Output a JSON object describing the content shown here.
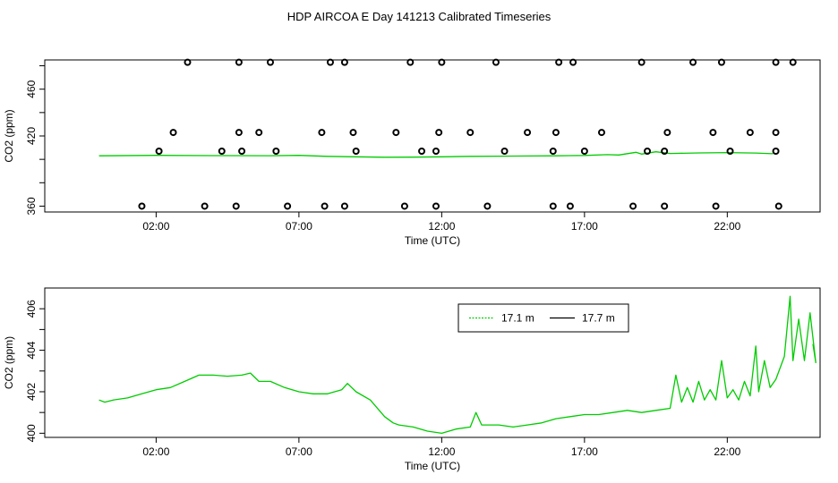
{
  "title": "HDP AIRCOA E  Day 141213  Calibrated Timeseries",
  "colors": {
    "series_a": "#00cc00",
    "series_b": "#000000",
    "frame": "#000000"
  },
  "chart_data": [
    {
      "type": "scatter",
      "xlabel": "Time (UTC)",
      "ylabel": "CO2 (ppm)",
      "x_unit": "hours UTC",
      "xlim": [
        -1.9,
        25.25
      ],
      "ylim": [
        355,
        485
      ],
      "x_ticks": [
        {
          "value": 2,
          "label": "02:00"
        },
        {
          "value": 7,
          "label": "07:00"
        },
        {
          "value": 12,
          "label": "12:00"
        },
        {
          "value": 17,
          "label": "17:00"
        },
        {
          "value": 22,
          "label": "22:00"
        }
      ],
      "y_ticks": [
        {
          "value": 360,
          "label": "360"
        },
        {
          "value": 380,
          "label": ""
        },
        {
          "value": 400,
          "label": ""
        },
        {
          "value": 420,
          "label": "420"
        },
        {
          "value": 440,
          "label": ""
        },
        {
          "value": 460,
          "label": "460"
        },
        {
          "value": 480,
          "label": ""
        }
      ],
      "series": [
        {
          "style": "line",
          "color": "#00cc00",
          "points": [
            [
              0,
              403
            ],
            [
              2,
              403.4
            ],
            [
              4,
              403.2
            ],
            [
              6,
              403.1
            ],
            [
              7,
              403.4
            ],
            [
              8,
              402.6
            ],
            [
              9,
              402.2
            ],
            [
              10,
              401.8
            ],
            [
              11,
              401.9
            ],
            [
              12,
              402.2
            ],
            [
              13,
              402.6
            ],
            [
              14,
              402.7
            ],
            [
              15,
              402.9
            ],
            [
              16,
              403
            ],
            [
              17,
              403.3
            ],
            [
              17.8,
              404
            ],
            [
              18.2,
              403.7
            ],
            [
              18.8,
              406
            ],
            [
              19,
              404.5
            ],
            [
              19.5,
              406.5
            ],
            [
              20,
              405
            ],
            [
              21,
              405.5
            ],
            [
              22,
              405.8
            ],
            [
              23,
              405.4
            ],
            [
              23.6,
              404.8
            ]
          ]
        },
        {
          "style": "points",
          "color": "#000000",
          "points": [
            [
              1.5,
              360
            ],
            [
              3.7,
              360
            ],
            [
              4.8,
              360
            ],
            [
              6.6,
              360
            ],
            [
              7.9,
              360
            ],
            [
              8.6,
              360
            ],
            [
              10.7,
              360
            ],
            [
              11.8,
              360
            ],
            [
              13.6,
              360
            ],
            [
              15.9,
              360
            ],
            [
              16.5,
              360
            ],
            [
              18.7,
              360
            ],
            [
              19.8,
              360
            ],
            [
              21.6,
              360
            ],
            [
              23.8,
              360
            ],
            [
              2.1,
              407
            ],
            [
              4.3,
              407
            ],
            [
              5.0,
              407
            ],
            [
              6.2,
              407
            ],
            [
              9.0,
              407
            ],
            [
              11.3,
              407
            ],
            [
              11.8,
              407
            ],
            [
              14.2,
              407
            ],
            [
              15.9,
              407
            ],
            [
              17.0,
              407
            ],
            [
              19.2,
              407
            ],
            [
              19.8,
              407
            ],
            [
              22.1,
              407
            ],
            [
              23.7,
              407
            ],
            [
              2.6,
              423
            ],
            [
              4.9,
              423
            ],
            [
              5.6,
              423
            ],
            [
              7.8,
              423
            ],
            [
              8.9,
              423
            ],
            [
              10.4,
              423
            ],
            [
              11.9,
              423
            ],
            [
              13.0,
              423
            ],
            [
              15.0,
              423
            ],
            [
              16.0,
              423
            ],
            [
              17.6,
              423
            ],
            [
              19.9,
              423
            ],
            [
              21.5,
              423
            ],
            [
              22.8,
              423
            ],
            [
              23.7,
              423
            ],
            [
              3.1,
              483
            ],
            [
              4.9,
              483
            ],
            [
              6.0,
              483
            ],
            [
              8.1,
              483
            ],
            [
              8.6,
              483
            ],
            [
              10.9,
              483
            ],
            [
              12.0,
              483
            ],
            [
              13.9,
              483
            ],
            [
              16.1,
              483
            ],
            [
              16.6,
              483
            ],
            [
              19.0,
              483
            ],
            [
              20.8,
              483
            ],
            [
              21.8,
              483
            ],
            [
              23.7,
              483
            ],
            [
              24.3,
              483
            ]
          ]
        }
      ]
    },
    {
      "type": "line",
      "xlabel": "Time (UTC)",
      "ylabel": "CO2 (ppm)",
      "x_unit": "hours UTC",
      "xlim": [
        -1.9,
        25.25
      ],
      "ylim": [
        399.8,
        407.0
      ],
      "x_ticks": [
        {
          "value": 2,
          "label": "02:00"
        },
        {
          "value": 7,
          "label": "07:00"
        },
        {
          "value": 12,
          "label": "12:00"
        },
        {
          "value": 17,
          "label": "17:00"
        },
        {
          "value": 22,
          "label": "22:00"
        }
      ],
      "y_ticks": [
        {
          "value": 400,
          "label": "400"
        },
        {
          "value": 401,
          "label": ""
        },
        {
          "value": 402,
          "label": "402"
        },
        {
          "value": 403,
          "label": ""
        },
        {
          "value": 404,
          "label": "404"
        },
        {
          "value": 405,
          "label": ""
        },
        {
          "value": 406,
          "label": "406"
        }
      ],
      "legend": {
        "position": "top-right",
        "entries": [
          {
            "label": "17.1 m",
            "color": "#00cc00",
            "style": "dotted"
          },
          {
            "label": "17.7 m",
            "color": "#000000",
            "style": "solid"
          }
        ]
      },
      "series": [
        {
          "name": "17.1 m",
          "color": "#00cc00",
          "points": [
            [
              0,
              401.6
            ],
            [
              0.2,
              401.5
            ],
            [
              0.5,
              401.6
            ],
            [
              1,
              401.7
            ],
            [
              1.5,
              401.9
            ],
            [
              2,
              402.1
            ],
            [
              2.5,
              402.2
            ],
            [
              3,
              402.5
            ],
            [
              3.5,
              402.8
            ],
            [
              4,
              402.8
            ],
            [
              4.5,
              402.75
            ],
            [
              5,
              402.8
            ],
            [
              5.3,
              402.9
            ],
            [
              5.6,
              402.5
            ],
            [
              6,
              402.5
            ],
            [
              6.5,
              402.2
            ],
            [
              7,
              402
            ],
            [
              7.5,
              401.9
            ],
            [
              8,
              401.9
            ],
            [
              8.5,
              402.1
            ],
            [
              8.7,
              402.4
            ],
            [
              9,
              402
            ],
            [
              9.5,
              401.6
            ],
            [
              10,
              400.8
            ],
            [
              10.3,
              400.5
            ],
            [
              10.5,
              400.4
            ],
            [
              11,
              400.3
            ],
            [
              11.5,
              400.1
            ],
            [
              12,
              400.0
            ],
            [
              12.5,
              400.2
            ],
            [
              13,
              400.3
            ],
            [
              13.2,
              401.0
            ],
            [
              13.4,
              400.4
            ],
            [
              14,
              400.4
            ],
            [
              14.5,
              400.3
            ],
            [
              15,
              400.4
            ],
            [
              15.5,
              400.5
            ],
            [
              16,
              400.7
            ],
            [
              16.5,
              400.8
            ],
            [
              17,
              400.9
            ],
            [
              17.5,
              400.9
            ],
            [
              18,
              401.0
            ],
            [
              18.5,
              401.1
            ],
            [
              19,
              401.0
            ],
            [
              19.5,
              401.1
            ],
            [
              20,
              401.2
            ],
            [
              20.2,
              402.8
            ],
            [
              20.4,
              401.5
            ],
            [
              20.6,
              402.2
            ],
            [
              20.8,
              401.5
            ],
            [
              21,
              402.5
            ],
            [
              21.2,
              401.6
            ],
            [
              21.4,
              402.1
            ],
            [
              21.6,
              401.6
            ],
            [
              21.8,
              403.5
            ],
            [
              22,
              401.7
            ],
            [
              22.2,
              402.1
            ],
            [
              22.4,
              401.6
            ],
            [
              22.6,
              402.5
            ],
            [
              22.8,
              401.8
            ],
            [
              23,
              404.2
            ],
            [
              23.1,
              402.0
            ],
            [
              23.3,
              403.5
            ],
            [
              23.5,
              402.2
            ],
            [
              23.7,
              402.6
            ],
            [
              24,
              403.7
            ],
            [
              24.2,
              406.6
            ],
            [
              24.3,
              403.5
            ],
            [
              24.5,
              405.5
            ],
            [
              24.7,
              403.5
            ],
            [
              24.9,
              405.8
            ],
            [
              25.1,
              403.4
            ],
            [
              25.0,
              404.3
            ]
          ]
        }
      ]
    }
  ]
}
